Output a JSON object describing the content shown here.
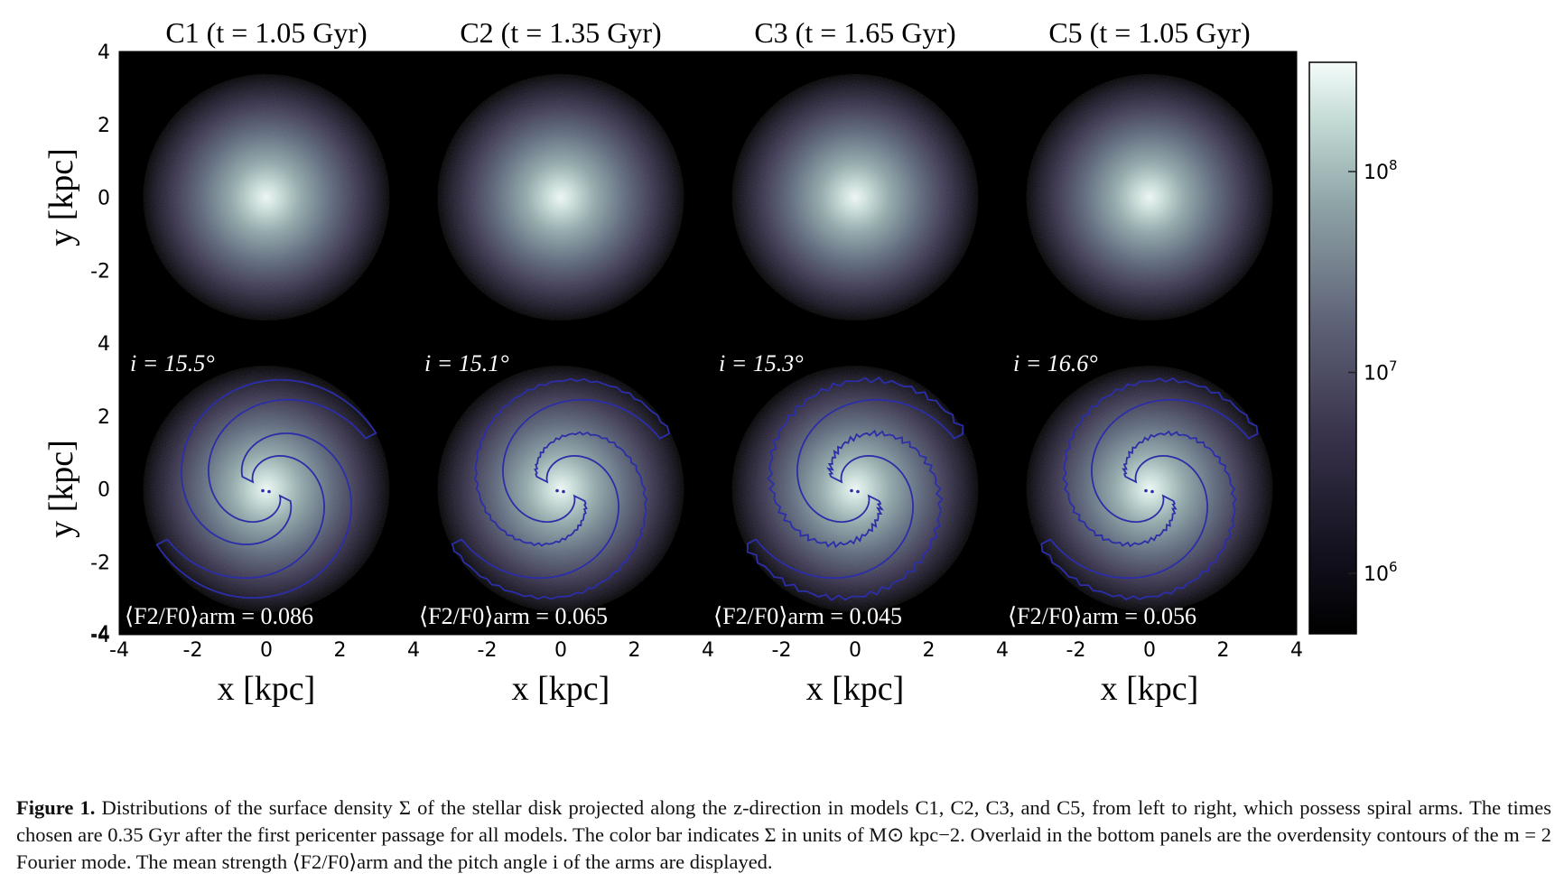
{
  "figure": {
    "panel_titles": [
      "C1 (t = 1.05 Gyr)",
      "C2 (t = 1.35 Gyr)",
      "C3 (t = 1.65 Gyr)",
      "C5 (t = 1.05 Gyr)"
    ],
    "models": [
      "C1",
      "C2",
      "C3",
      "C5"
    ],
    "times_gyr": [
      "1.05",
      "1.35",
      "1.65",
      "1.05"
    ],
    "pitch_angles": [
      "i = 15.5°",
      "i = 15.1°",
      "i = 15.3°",
      "i = 16.6°"
    ],
    "pitch_angle_values_deg": [
      15.5,
      15.1,
      15.3,
      16.6
    ],
    "arm_strengths": [
      "⟨F2/F0⟩arm = 0.086",
      "⟨F2/F0⟩arm = 0.065",
      "⟨F2/F0⟩arm = 0.045",
      "⟨F2/F0⟩arm = 0.056"
    ],
    "arm_strength_values": [
      0.086,
      0.065,
      0.045,
      0.056
    ],
    "xlabel": "x [kpc]",
    "ylabel": "y [kpc]",
    "axis_range_kpc": [
      -4,
      4
    ],
    "x_ticks": [
      "-4",
      "-2",
      "0",
      "2",
      "4"
    ],
    "y_ticks": [
      "4",
      "2",
      "0",
      "-2",
      "-4"
    ],
    "colorbar": {
      "scale": "log",
      "range": [
        500000,
        350000000
      ],
      "ticks": [
        {
          "value": 1000000,
          "label": "10",
          "exp": "6"
        },
        {
          "value": 10000000,
          "label": "10",
          "exp": "7"
        },
        {
          "value": 100000000,
          "label": "10",
          "exp": "8"
        }
      ]
    },
    "colors": {
      "background": "#000000",
      "disk_core": "#e8f4f0",
      "disk_mid": "#8fa6a8",
      "disk_outer": "#4a4660",
      "contour": "#2b2ea8"
    }
  },
  "caption": {
    "label": "Figure 1.",
    "text": "Distributions of the surface density Σ of the stellar disk projected along the z-direction in models C1, C2, C3, and C5, from left to right, which possess spiral arms. The times chosen are 0.35 Gyr after the first pericenter passage for all models. The color bar indicates Σ in units of M⊙ kpc−2. Overlaid in the bottom panels are the overdensity contours of the m = 2 Fourier mode. The mean strength ⟨F2/F0⟩arm and the pitch angle i of the arms are displayed."
  }
}
